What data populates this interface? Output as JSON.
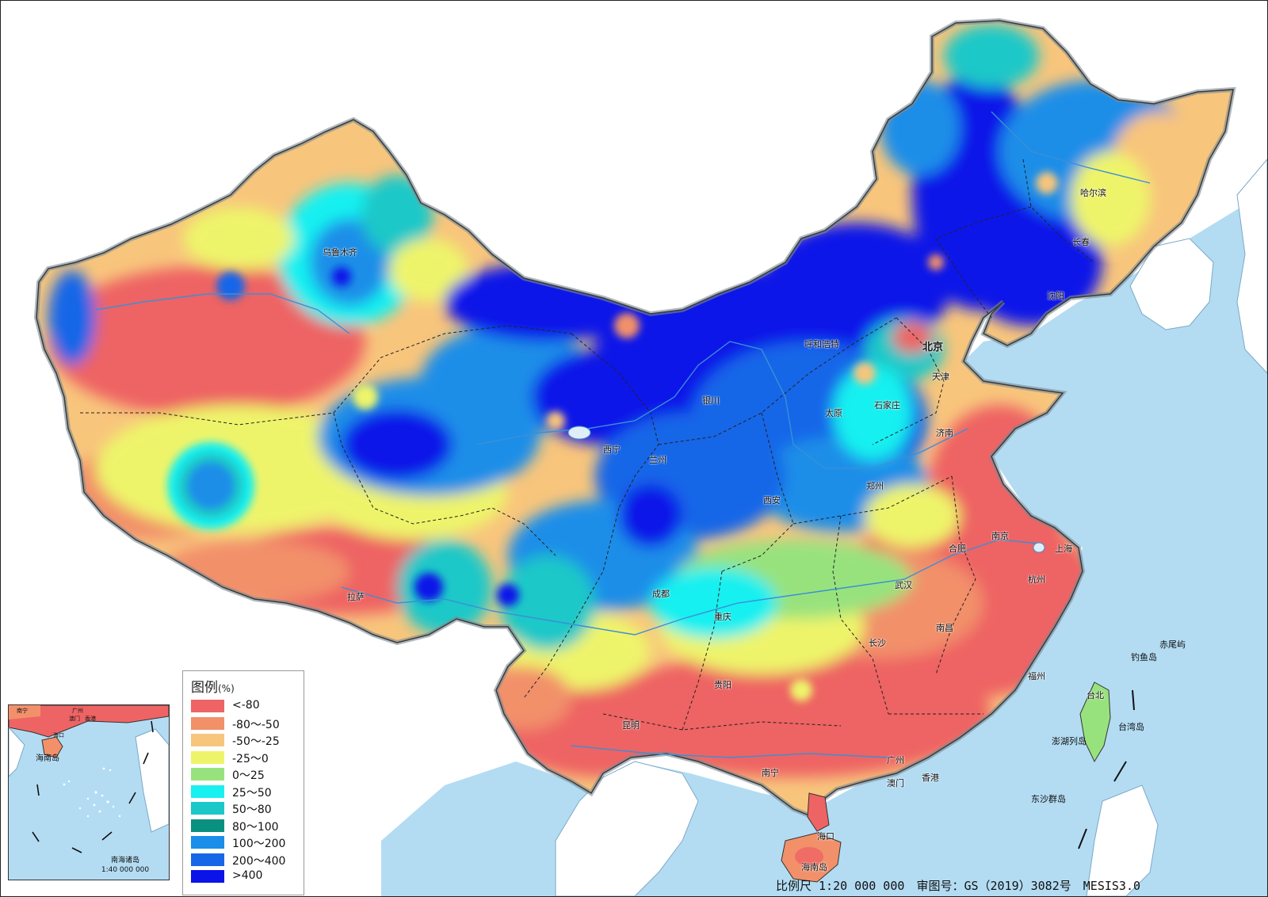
{
  "legend": {
    "title": "图例",
    "unit": "(%)",
    "items": [
      {
        "label": "<-80",
        "color": "#ee6464"
      },
      {
        "label": "-80～-50",
        "color": "#f2906a"
      },
      {
        "label": "-50～-25",
        "color": "#f8c57c"
      },
      {
        "label": "-25～0",
        "color": "#eef46a"
      },
      {
        "label": "0～25",
        "color": "#98e27e"
      },
      {
        "label": "25～50",
        "color": "#19f0f0"
      },
      {
        "label": "50～80",
        "color": "#1ac8c8"
      },
      {
        "label": "80～100",
        "color": "#0a9080"
      },
      {
        "label": "100～200",
        "color": "#1a8ee8"
      },
      {
        "label": "200～400",
        "color": "#1866e8"
      },
      {
        "label": ">400",
        "color": "#0a14e8"
      }
    ]
  },
  "cities": {
    "wulumuqi": "乌鲁木齐",
    "haerbin": "哈尔滨",
    "changchun": "长春",
    "shenyang": "沈阳",
    "huhehaote": "呼和浩特",
    "beijing": "北京",
    "tianjin": "天津",
    "shijiazhuang": "石家庄",
    "taiyuan": "太原",
    "jinan": "济南",
    "yinchuan": "银川",
    "xining": "西宁",
    "lanzhou": "兰州",
    "xian": "西安",
    "zhengzhou": "郑州",
    "nanjing": "南京",
    "hefei": "合肥",
    "shanghai": "上海",
    "hangzhou": "杭州",
    "wuhan": "武汉",
    "chengdu": "成都",
    "lasa": "拉萨",
    "chongqing": "重庆",
    "nanchang": "南昌",
    "changsha": "长沙",
    "guiyang": "贵阳",
    "fuzhou": "福州",
    "kunming": "昆明",
    "nanning": "南宁",
    "guangzhou": "广州",
    "aomen": "澳门",
    "xianggang": "香港",
    "haikou": "海口",
    "hainandao": "海南岛",
    "taibei": "台北"
  },
  "islands": {
    "chiweiyu": "赤尾屿",
    "diaoyudao": "钓鱼岛",
    "taiwandao": "台湾岛",
    "penghu": "澎湖列岛",
    "dongsha": "东沙群岛"
  },
  "inset": {
    "labels": [
      "南宁",
      "广州",
      "澳门",
      "香港",
      "海口",
      "海南岛"
    ],
    "caption": "南海诸岛",
    "scale": "1:40 000 000"
  },
  "footer": {
    "scale": "比例尺 1:20 000 000",
    "review": "审图号：GS（2019）3082号",
    "system": "MESIS3.0"
  },
  "colors": {
    "sea": "#b3dcf3",
    "land_outside": "#ffffff",
    "border": "#6f6f6f"
  }
}
